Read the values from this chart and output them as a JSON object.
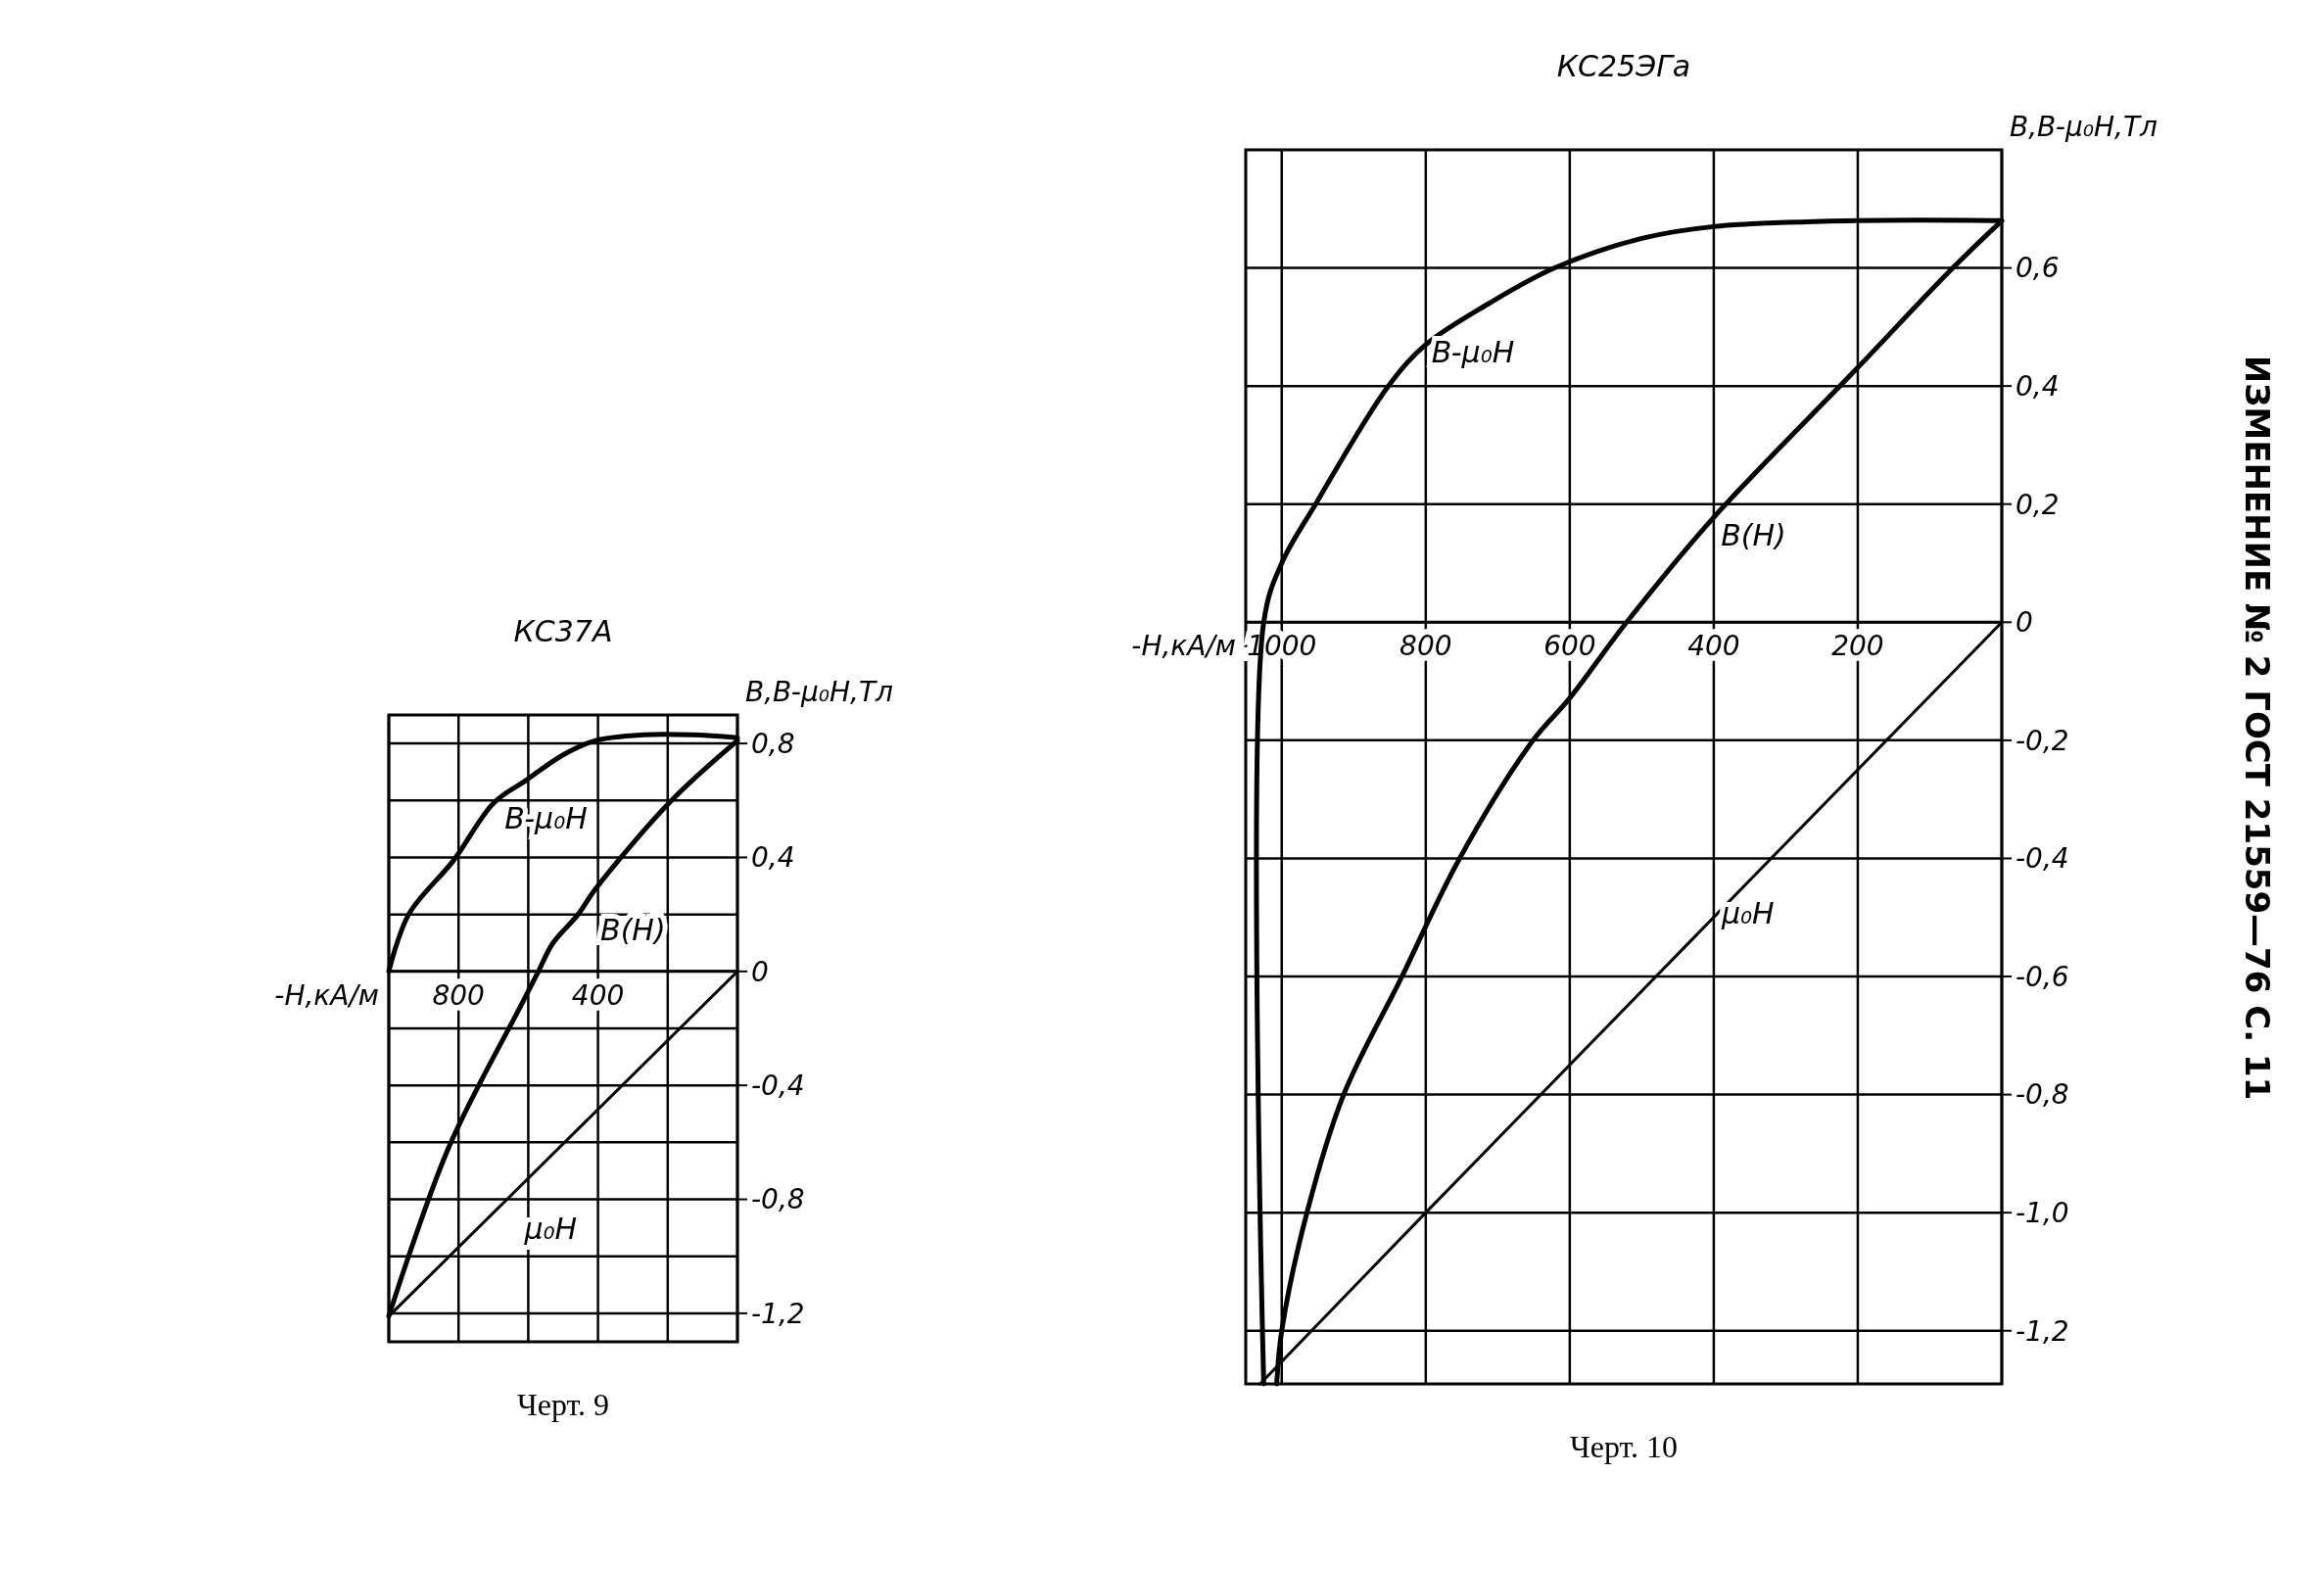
{
  "chart_data": [
    {
      "type": "line",
      "title": "КС37А",
      "xlabel": "-H,кА/м",
      "ylabel": "B,B-μ₀H,Тл",
      "xlim": [
        1000,
        0
      ],
      "ylim": [
        -1.3,
        0.9
      ],
      "grid": true,
      "xticks": [
        {
          "value": 1000,
          "label": null
        },
        800,
        {
          "value": 600,
          "label": null
        },
        400,
        {
          "value": 200,
          "label": null
        },
        {
          "value": 0,
          "label": null
        }
      ],
      "yticks": [
        {
          "value": 0.8,
          "label": "0,8"
        },
        {
          "value": 0.6,
          "label": null
        },
        {
          "value": 0.4,
          "label": "0,4"
        },
        {
          "value": 0.2,
          "label": null
        },
        0,
        {
          "value": -0.2,
          "label": null
        },
        {
          "value": -0.4,
          "label": "-0,4"
        },
        {
          "value": -0.6,
          "label": null
        },
        {
          "value": -0.8,
          "label": "-0,8"
        },
        {
          "value": -1,
          "label": null
        },
        {
          "value": -1.2,
          "label": "-1,2"
        }
      ],
      "annotations": [
        "Черт. 9"
      ],
      "series": [
        {
          "type": "line",
          "name": "B-μ₀H",
          "color": "#000000",
          "x": [
            1000,
            943,
            814,
            700,
            607,
            500,
            407,
            271,
            129,
            0
          ],
          "values": [
            0,
            0.2,
            0.39,
            0.59,
            0.67,
            0.76,
            0.81,
            0.83,
            0.83,
            0.82
          ]
        },
        {
          "type": "line",
          "name": "B(H)",
          "color": "#000000",
          "x": [
            0,
            189,
            407,
            457,
            529,
            571,
            621,
            829,
            1000
          ],
          "values": [
            0.81,
            0.6,
            0.29,
            0.2,
            0.1,
            0,
            -0.12,
            -0.62,
            -1.21
          ]
        },
        {
          "type": "line",
          "name": "μ₀H",
          "color": "#000000",
          "x": [
            0,
            1000
          ],
          "values": [
            0,
            -1.21
          ]
        }
      ]
    },
    {
      "type": "line",
      "title": "КС25ЭГа",
      "xlabel": "-H,кА/м",
      "ylabel": "B,B-μ₀H,Тл",
      "xlim": [
        1050,
        0
      ],
      "ylim": [
        -1.29,
        0.8
      ],
      "grid": true,
      "xticks": [
        1000,
        800,
        600,
        400,
        200,
        {
          "value": 0,
          "label": null
        }
      ],
      "yticks": [
        {
          "value": 0.6,
          "label": "0,6"
        },
        {
          "value": 0.4,
          "label": "0,4"
        },
        {
          "value": 0.2,
          "label": "0,2"
        },
        0,
        {
          "value": -0.2,
          "label": "-0,2"
        },
        {
          "value": -0.4,
          "label": "-0,4"
        },
        {
          "value": -0.6,
          "label": "-0,6"
        },
        {
          "value": -0.8,
          "label": "-0,8"
        },
        {
          "value": -1,
          "label": "-1,0"
        },
        {
          "value": -1.2,
          "label": "-1,2"
        }
      ],
      "annotations": [
        "Черт. 10",
        "ИЗМЕНЕНИЕ № 2 ГОСТ 21559—76 С. 11"
      ],
      "series": [
        {
          "type": "line",
          "name": "B-μ₀H",
          "color": "#000000",
          "x": [
            1025,
            1025,
            1000,
            953,
            852,
            800,
            712,
            621,
            500,
            400,
            201,
            0
          ],
          "values": [
            -1.29,
            0,
            0.1,
            0.2,
            0.4,
            0.47,
            0.54,
            0.6,
            0.65,
            0.67,
            0.68,
            0.68
          ]
        },
        {
          "type": "line",
          "name": "B(H)",
          "color": "#000000",
          "x": [
            0,
            68,
            201,
            402,
            521,
            601,
            651,
            753,
            833,
            914,
            965,
            1000,
            1007
          ],
          "values": [
            0.68,
            0.6,
            0.43,
            0.175,
            0,
            -0.13,
            -0.2,
            -0.4,
            -0.6,
            -0.8,
            -1.0,
            -1.2,
            -1.29
          ]
        },
        {
          "type": "line",
          "name": "μ₀H",
          "color": "#000000",
          "x": [
            0,
            800,
            1030
          ],
          "values": [
            0,
            -1.0,
            -1.29
          ]
        }
      ]
    }
  ]
}
